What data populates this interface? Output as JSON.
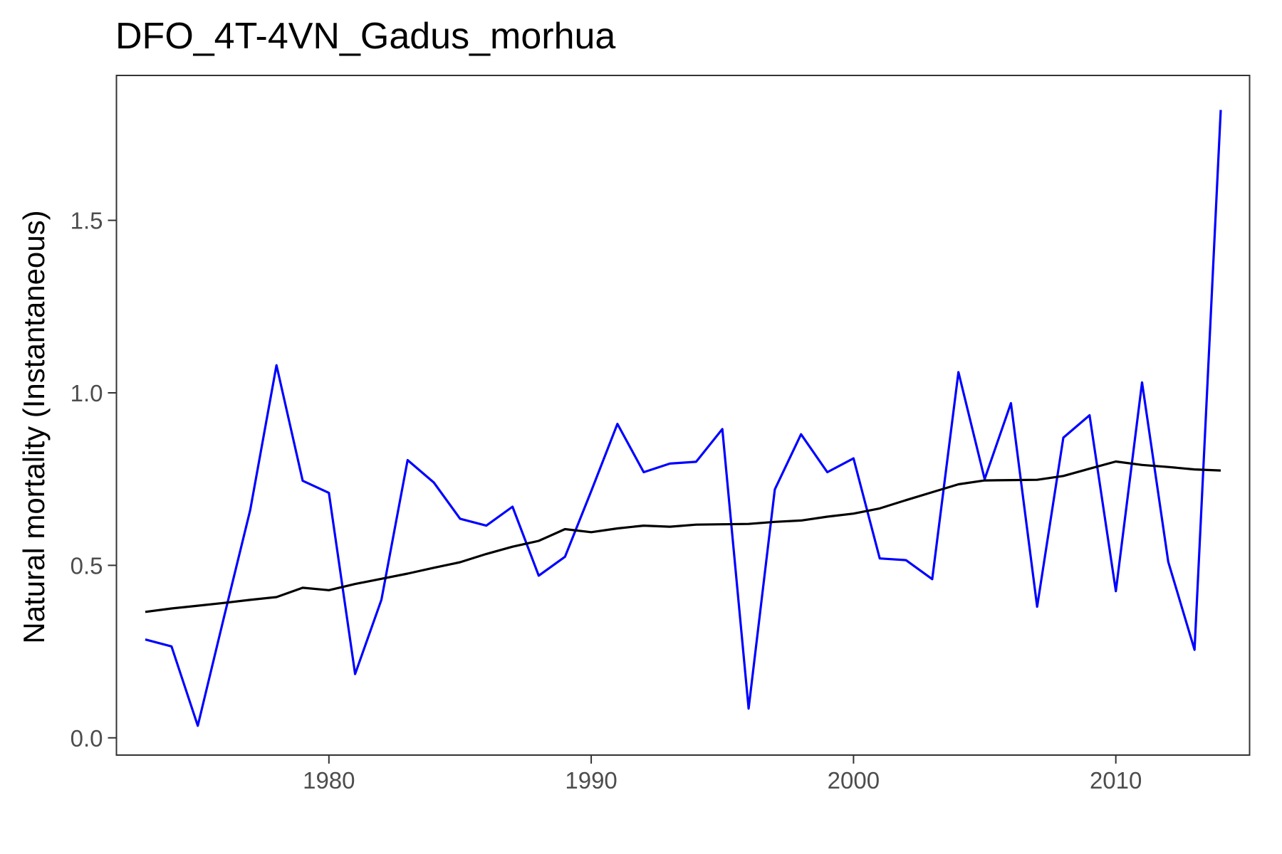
{
  "chart_data": {
    "type": "line",
    "title": "DFO_4T-4VN_Gadus_morhua",
    "xlabel": "",
    "ylabel": "Natural mortality (Instantaneous)",
    "xlim": [
      1971.9,
      2015.1
    ],
    "ylim": [
      -0.05,
      1.92
    ],
    "x_ticks": [
      1980,
      1990,
      2000,
      2010
    ],
    "y_ticks": [
      0.0,
      0.5,
      1.0,
      1.5
    ],
    "y_tick_labels": [
      "0.0",
      "0.5",
      "1.0",
      "1.5"
    ],
    "grid": false,
    "x": [
      1973,
      1974,
      1975,
      1976,
      1977,
      1978,
      1979,
      1980,
      1981,
      1982,
      1983,
      1984,
      1985,
      1986,
      1987,
      1988,
      1989,
      1990,
      1991,
      1992,
      1993,
      1994,
      1995,
      1996,
      1997,
      1998,
      1999,
      2000,
      2001,
      2002,
      2003,
      2004,
      2005,
      2006,
      2007,
      2008,
      2009,
      2010,
      2011,
      2012,
      2013,
      2014
    ],
    "series": [
      {
        "color": "#0000ff",
        "values": [
          0.285,
          0.265,
          0.035,
          0.35,
          0.66,
          1.08,
          0.745,
          0.71,
          0.185,
          0.4,
          0.805,
          0.74,
          0.635,
          0.615,
          0.67,
          0.47,
          0.525,
          0.715,
          0.91,
          0.77,
          0.795,
          0.8,
          0.895,
          0.085,
          0.72,
          0.88,
          0.77,
          0.81,
          0.52,
          0.515,
          0.46,
          1.06,
          0.75,
          0.97,
          0.38,
          0.87,
          0.935,
          0.425,
          1.03,
          0.51,
          0.255,
          1.82
        ]
      },
      {
        "color": "#000000",
        "values": [
          0.365,
          0.375,
          0.383,
          0.391,
          0.4,
          0.408,
          0.435,
          0.428,
          0.446,
          0.461,
          0.476,
          0.493,
          0.509,
          0.533,
          0.554,
          0.571,
          0.605,
          0.596,
          0.607,
          0.615,
          0.612,
          0.618,
          0.619,
          0.62,
          0.626,
          0.63,
          0.641,
          0.65,
          0.665,
          0.689,
          0.712,
          0.735,
          0.746,
          0.747,
          0.748,
          0.759,
          0.78,
          0.801,
          0.791,
          0.785,
          0.778,
          0.775
        ]
      }
    ]
  }
}
